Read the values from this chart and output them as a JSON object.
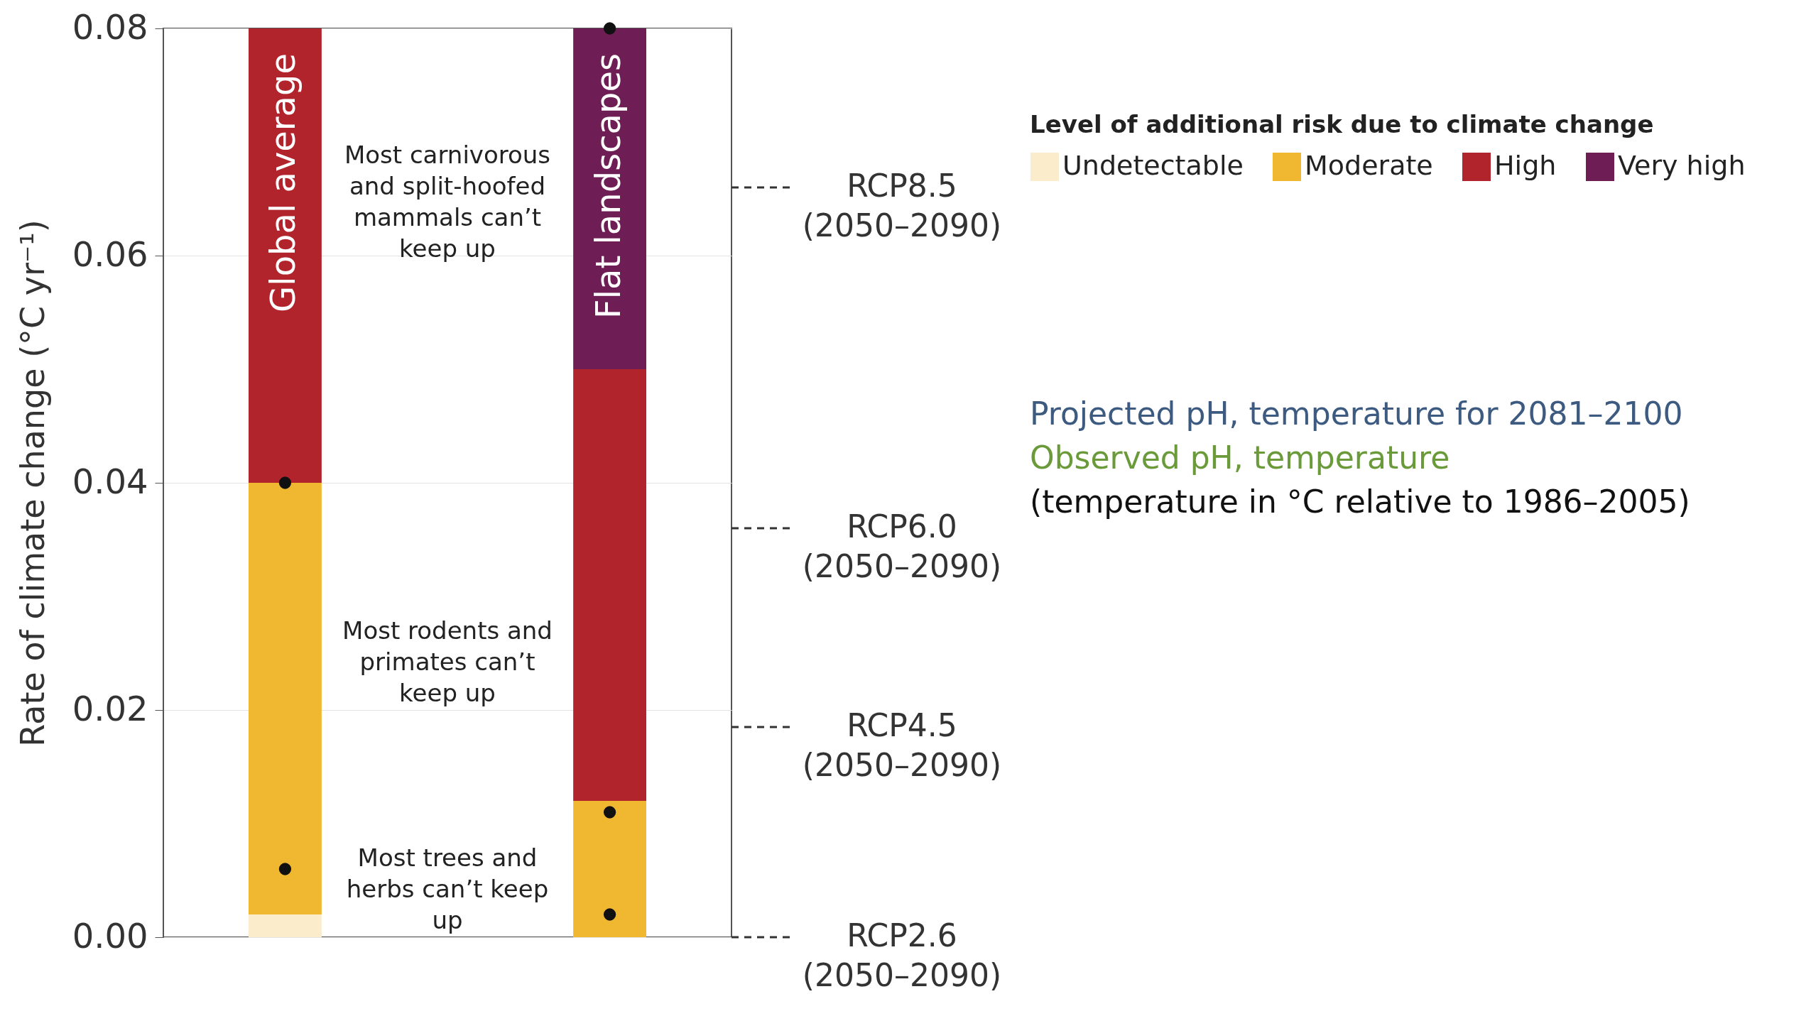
{
  "chart_data": {
    "type": "bar",
    "stacked": true,
    "categories": [
      "Global average",
      "Flat landscapes"
    ],
    "series": [
      {
        "name": "Undetectable",
        "color": "#fbeccb",
        "values": [
          0.002,
          0
        ]
      },
      {
        "name": "Moderate",
        "color": "#f0b731",
        "values": [
          0.038,
          0.012
        ]
      },
      {
        "name": "High",
        "color": "#b2242c",
        "values": [
          0.04,
          0.038
        ]
      },
      {
        "name": "Very high",
        "color": "#6e1e54",
        "values": [
          0,
          0.03
        ]
      },
      {
        "type": "scatter",
        "color": "#111111",
        "x": [
          "Global average",
          "Global average",
          "Flat landscapes",
          "Flat landscapes",
          "Flat landscapes"
        ],
        "values": [
          0.04,
          0.006,
          0.08,
          0.011,
          0.002
        ]
      }
    ],
    "ylim": [
      0,
      0.08
    ],
    "yticks": [
      {
        "value": 0,
        "label": "0.00"
      },
      0.02,
      0.04,
      0.06,
      0.08
    ],
    "grid": "y",
    "tick_labels": "y",
    "marker": "circle",
    "ylabel": "Rate of climate change (°C yr⁻¹)",
    "legend": "top right",
    "legend_title": "Level of additional risk due to climate change",
    "ref_lines": [
      {
        "axis": "y",
        "value": 0.066,
        "label": "RCP8.5 (2050–2090)",
        "line_style": "dashed"
      },
      {
        "axis": "y",
        "value": 0.036,
        "label": "RCP6.0 (2050–2090)",
        "line_style": "dashed"
      },
      {
        "axis": "y",
        "value": 0.0185,
        "label": "RCP4.5 (2050–2090)",
        "line_style": "dashed"
      },
      {
        "axis": "y",
        "value": 0,
        "label": "RCP2.6 (2050–2090)",
        "line_style": "dashed"
      }
    ],
    "annotations": [
      "Most carnivorous and split-hoofed mammals can’t keep up",
      "Most rodents and primates can’t keep up",
      "Most trees and herbs can’t keep up",
      "Projected pH, temperature for 2081–2100",
      "Observed pH, temperature",
      "(temperature in °C relative to 1986–2005)"
    ]
  }
}
